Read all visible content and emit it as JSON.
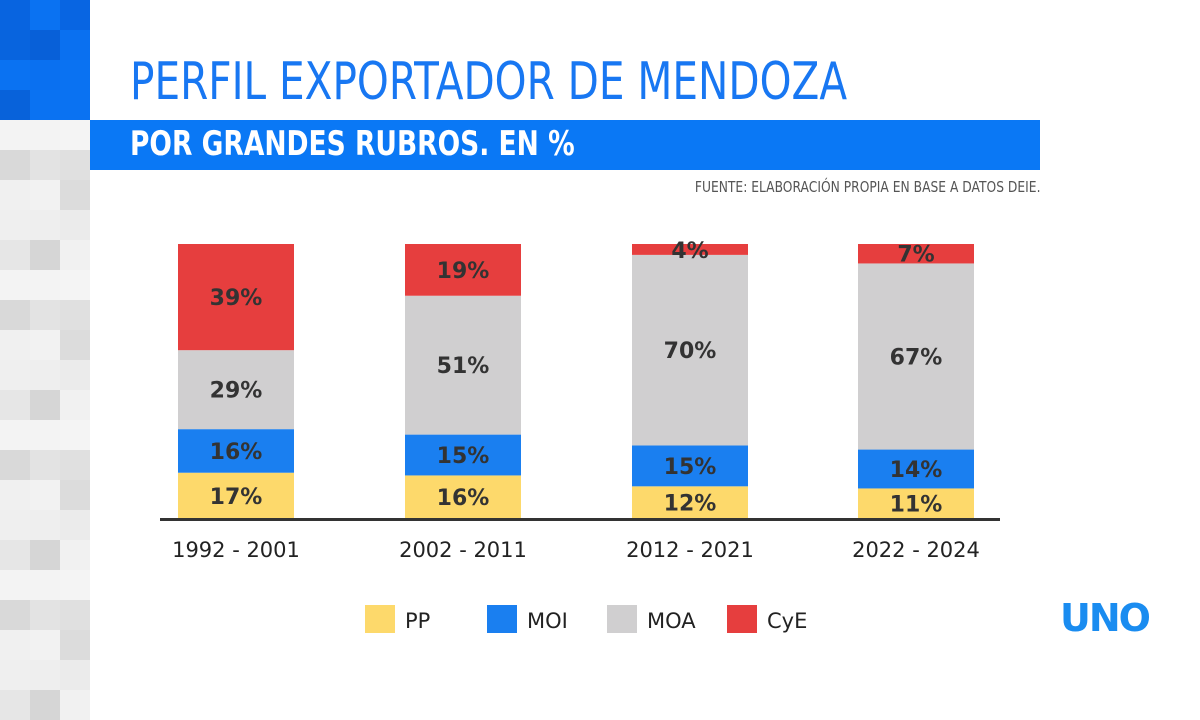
{
  "header": {
    "title": "PERFIL EXPORTADOR DE MENDOZA",
    "subtitle": "POR GRANDES RUBROS. EN %",
    "source": "FUENTE: ELABORACIÓN PROPIA EN BASE A DATOS DEIE."
  },
  "logo": {
    "text": "UNO",
    "color": "#1a8cf0"
  },
  "chart_data": {
    "type": "bar",
    "stacked": true,
    "categories": [
      "1992 - 2001",
      "2002 - 2011",
      "2012 - 2021",
      "2022 - 2024"
    ],
    "series": [
      {
        "name": "PP",
        "color": "#fdd96b",
        "values": [
          17,
          16,
          12,
          11
        ]
      },
      {
        "name": "MOI",
        "color": "#1a7ff0",
        "values": [
          16,
          15,
          15,
          14
        ]
      },
      {
        "name": "MOA",
        "color": "#d0cfd0",
        "values": [
          29,
          51,
          70,
          67
        ]
      },
      {
        "name": "CyE",
        "color": "#e63e3e",
        "values": [
          39,
          19,
          4,
          7
        ]
      }
    ],
    "unit": "%",
    "legend": "bottom",
    "grid": false
  }
}
